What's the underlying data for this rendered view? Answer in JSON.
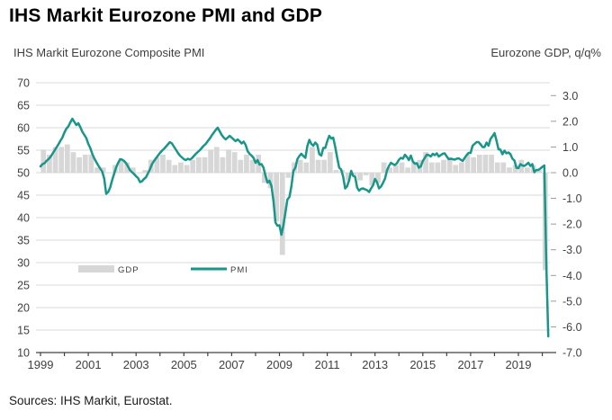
{
  "header": {
    "title": "IHS Markit Eurozone PMI and GDP"
  },
  "chart": {
    "left_axis_title": "IHS Markit Eurozone Composite PMI",
    "right_axis_title": "Eurozone GDP, q/q%",
    "source": "Sources: IHS Markit, Eurostat."
  },
  "chart_data": {
    "type": "combo-line-bar",
    "title": "IHS Markit Eurozone PMI and GDP",
    "left_axis": {
      "label": "IHS Markit Eurozone Composite PMI",
      "ticks": [
        70,
        65,
        60,
        55,
        50,
        45,
        40,
        35,
        30,
        25,
        20,
        15,
        10
      ],
      "range": [
        10,
        70
      ]
    },
    "right_axis": {
      "label": "Eurozone GDP, q/q%",
      "tick_labels": [
        "3.0",
        "2.0",
        "1.0",
        "0.0",
        "-1.0",
        "-2.0",
        "-3.0",
        "-4.0",
        "-5.0",
        "-6.0",
        "-7.0"
      ],
      "range": [
        -7,
        3
      ]
    },
    "x_axis": {
      "tick_years": [
        1999,
        2000,
        2001,
        2002,
        2003,
        2004,
        2005,
        2006,
        2007,
        2008,
        2009,
        2010,
        2011,
        2012,
        2013,
        2014,
        2015,
        2016,
        2017,
        2018,
        2019,
        2020
      ],
      "label_years": [
        1999,
        2001,
        2003,
        2005,
        2007,
        2009,
        2011,
        2013,
        2015,
        2017,
        2019
      ],
      "range_decimal_years": [
        1999.0,
        2020.33
      ],
      "grid": "horizontal-only"
    },
    "legend": {
      "position": "inside-bottom-left",
      "entries": [
        "GDP",
        "PMI"
      ]
    },
    "series": [
      {
        "name": "GDP",
        "type": "bar",
        "axis": "right",
        "color": "#d7d7d7",
        "freq": "quarterly",
        "start": "1999Q1",
        "values": [
          0.9,
          0.7,
          1.0,
          1.0,
          1.1,
          0.8,
          0.6,
          0.7,
          0.7,
          0.2,
          0.2,
          0.0,
          0.3,
          0.5,
          0.4,
          0.2,
          0.0,
          0.1,
          0.5,
          0.6,
          0.7,
          0.5,
          0.3,
          0.4,
          0.3,
          0.5,
          0.6,
          0.6,
          0.9,
          1.0,
          0.6,
          0.9,
          0.8,
          0.5,
          0.7,
          0.5,
          0.7,
          -0.4,
          -0.6,
          -1.9,
          -3.2,
          -0.2,
          0.4,
          0.5,
          0.4,
          1.0,
          0.5,
          0.5,
          0.8,
          0.1,
          0.1,
          -0.3,
          -0.1,
          -0.3,
          -0.1,
          -0.5,
          -0.4,
          0.4,
          0.2,
          0.3,
          0.4,
          0.2,
          0.4,
          0.5,
          0.8,
          0.4,
          0.4,
          0.5,
          0.6,
          0.3,
          0.4,
          0.7,
          0.6,
          0.7,
          0.7,
          0.7,
          0.4,
          0.4,
          0.2,
          0.3,
          0.5,
          0.2,
          0.3,
          0.1,
          -3.8
        ]
      },
      {
        "name": "PMI",
        "type": "line",
        "axis": "left",
        "color": "#179689",
        "freq": "monthly",
        "start": "1999-01",
        "values": [
          51.4,
          51.9,
          52.1,
          52.6,
          53.0,
          53.5,
          54.2,
          54.9,
          55.6,
          56.3,
          57.1,
          57.8,
          58.9,
          59.8,
          60.3,
          61.2,
          62.0,
          61.3,
          60.6,
          61.0,
          60.1,
          59.1,
          58.4,
          57.7,
          56.4,
          55.5,
          54.2,
          53.2,
          52.4,
          51.6,
          50.9,
          50.2,
          48.7,
          45.3,
          45.7,
          46.7,
          48.4,
          49.8,
          51.2,
          52.2,
          53.0,
          52.9,
          52.6,
          52.1,
          51.3,
          50.5,
          50.1,
          49.7,
          49.2,
          48.8,
          47.9,
          48.1,
          48.6,
          49.0,
          49.9,
          50.8,
          51.9,
          52.6,
          53.2,
          53.8,
          54.4,
          54.9,
          55.3,
          55.8,
          56.3,
          56.8,
          56.5,
          55.8,
          55.1,
          54.4,
          53.8,
          53.4,
          53.0,
          52.8,
          53.1,
          52.9,
          53.2,
          53.7,
          54.2,
          54.6,
          55.0,
          55.5,
          56.0,
          56.4,
          57.0,
          57.6,
          58.3,
          58.9,
          59.5,
          60.0,
          59.2,
          58.4,
          57.8,
          57.4,
          57.8,
          58.2,
          57.8,
          57.4,
          57.0,
          57.4,
          57.0,
          56.5,
          56.9,
          56.2,
          54.8,
          54.2,
          53.8,
          53.3,
          52.2,
          52.8,
          51.8,
          51.9,
          51.1,
          49.3,
          47.8,
          48.2,
          47.0,
          43.6,
          38.9,
          38.2,
          38.3,
          36.2,
          38.3,
          41.1,
          44.0,
          44.6,
          47.0,
          50.4,
          51.1,
          53.0,
          53.7,
          54.2,
          53.7,
          53.3,
          55.9,
          57.3,
          56.4,
          56.0,
          56.7,
          56.2,
          54.1,
          53.8,
          55.5,
          55.5,
          57.0,
          58.2,
          57.6,
          57.8,
          55.8,
          53.3,
          51.1,
          50.7,
          49.1,
          46.5,
          47.0,
          48.3,
          50.4,
          49.3,
          49.1,
          46.7,
          46.0,
          46.4,
          46.5,
          46.3,
          46.1,
          45.7,
          46.5,
          47.2,
          48.6,
          47.9,
          46.5,
          46.9,
          47.7,
          48.7,
          50.5,
          51.5,
          52.2,
          51.9,
          51.7,
          52.1,
          52.9,
          53.3,
          53.1,
          54.0,
          53.5,
          52.8,
          53.8,
          52.5,
          52.0,
          52.1,
          51.1,
          51.4,
          52.6,
          53.3,
          54.0,
          53.9,
          53.6,
          54.2,
          53.9,
          54.3,
          53.6,
          53.9,
          54.2,
          54.3,
          53.6,
          53.0,
          53.1,
          53.0,
          52.9,
          53.1,
          53.2,
          52.9,
          52.6,
          53.3,
          53.9,
          54.4,
          54.4,
          56.0,
          56.4,
          56.8,
          56.8,
          56.3,
          55.7,
          55.7,
          56.7,
          56.0,
          57.5,
          58.1,
          58.8,
          57.1,
          55.2,
          55.1,
          54.1,
          54.9,
          54.3,
          54.5,
          54.1,
          53.1,
          52.7,
          51.1,
          51.0,
          51.9,
          51.6,
          51.5,
          51.8,
          52.2,
          51.5,
          51.9,
          50.1,
          50.6,
          50.6,
          50.9,
          51.3,
          51.6,
          29.7,
          13.6
        ]
      }
    ],
    "style": {
      "gridline_color": "#d9d9d9",
      "axis_line_color": "#404040",
      "tick_label_color": "#404040",
      "pmi_line_color": "#179689",
      "gdp_bar_color": "#d7d7d7"
    }
  }
}
